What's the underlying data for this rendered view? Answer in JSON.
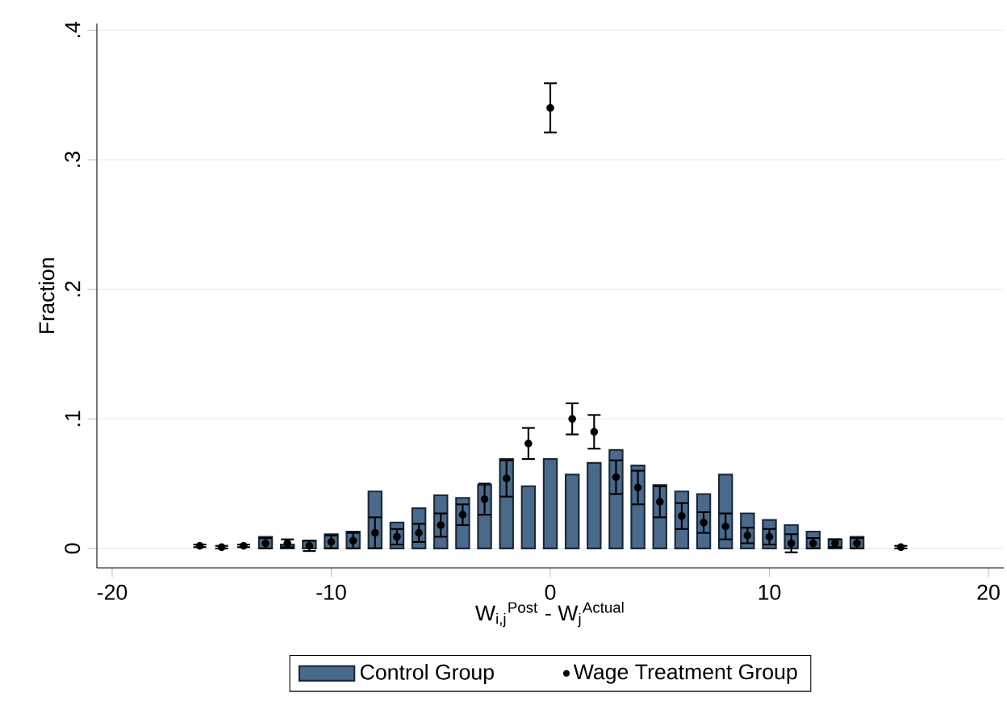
{
  "chart_data": {
    "type": "bar",
    "xlabel": "W$_{i,j}$$^{Post}$ - W$_{j}$$^{Actual}$",
    "ylabel": "Fraction",
    "xlim": [
      -20.7,
      20.7
    ],
    "ylim": [
      -0.015,
      0.405
    ],
    "xticks": [
      -20,
      -10,
      0,
      10,
      20
    ],
    "yticks": [
      {
        "value": 0,
        "label": "0"
      },
      {
        "value": 0.1,
        "label": ".1"
      },
      {
        "value": 0.2,
        "label": ".2"
      },
      {
        "value": 0.3,
        "label": ".3"
      },
      {
        "value": 0.4,
        "label": ".4"
      }
    ],
    "grid": "y",
    "legend": "bottom",
    "series": [
      {
        "name": "Control Group",
        "type": "bar",
        "color": "#4a6a8c",
        "x": [
          -13,
          -12,
          -11,
          -10,
          -9,
          -8,
          -7,
          -6,
          -5,
          -4,
          -3,
          -2,
          -1,
          0,
          1,
          2,
          3,
          4,
          5,
          6,
          7,
          8,
          9,
          10,
          11,
          12,
          13,
          14
        ],
        "values": [
          0.009,
          0.003,
          0.006,
          0.011,
          0.013,
          0.044,
          0.02,
          0.031,
          0.041,
          0.039,
          0.049,
          0.069,
          0.048,
          0.069,
          0.057,
          0.066,
          0.076,
          0.064,
          0.049,
          0.044,
          0.042,
          0.057,
          0.027,
          0.022,
          0.018,
          0.013,
          0.007,
          0.009
        ]
      },
      {
        "name": "Wage Treatment Group",
        "type": "scatter",
        "color": "#000000",
        "marker": "circle",
        "x": [
          -16,
          -15,
          -14,
          -13,
          -12,
          -11,
          -10,
          -9,
          -8,
          -7,
          -6,
          -5,
          -4,
          -3,
          -2,
          -1,
          0,
          1,
          2,
          3,
          4,
          5,
          6,
          7,
          8,
          9,
          10,
          11,
          12,
          13,
          14,
          16
        ],
        "values": [
          0.002,
          0.001,
          0.002,
          0.004,
          0.004,
          0.002,
          0.005,
          0.006,
          0.012,
          0.009,
          0.012,
          0.018,
          0.026,
          0.038,
          0.054,
          0.081,
          0.34,
          0.1,
          0.09,
          0.055,
          0.047,
          0.036,
          0.025,
          0.02,
          0.017,
          0.01,
          0.009,
          0.004,
          0.004,
          0.004,
          0.004,
          0.001
        ],
        "errors": [
          0.001,
          0.001,
          0.001,
          0.004,
          0.003,
          0.004,
          0.005,
          0.006,
          0.012,
          0.006,
          0.007,
          0.009,
          0.008,
          0.012,
          0.014,
          0.012,
          0.019,
          0.012,
          0.013,
          0.013,
          0.013,
          0.012,
          0.01,
          0.008,
          0.01,
          0.006,
          0.006,
          0.007,
          0.004,
          0.003,
          0.004,
          0.001
        ]
      }
    ]
  }
}
